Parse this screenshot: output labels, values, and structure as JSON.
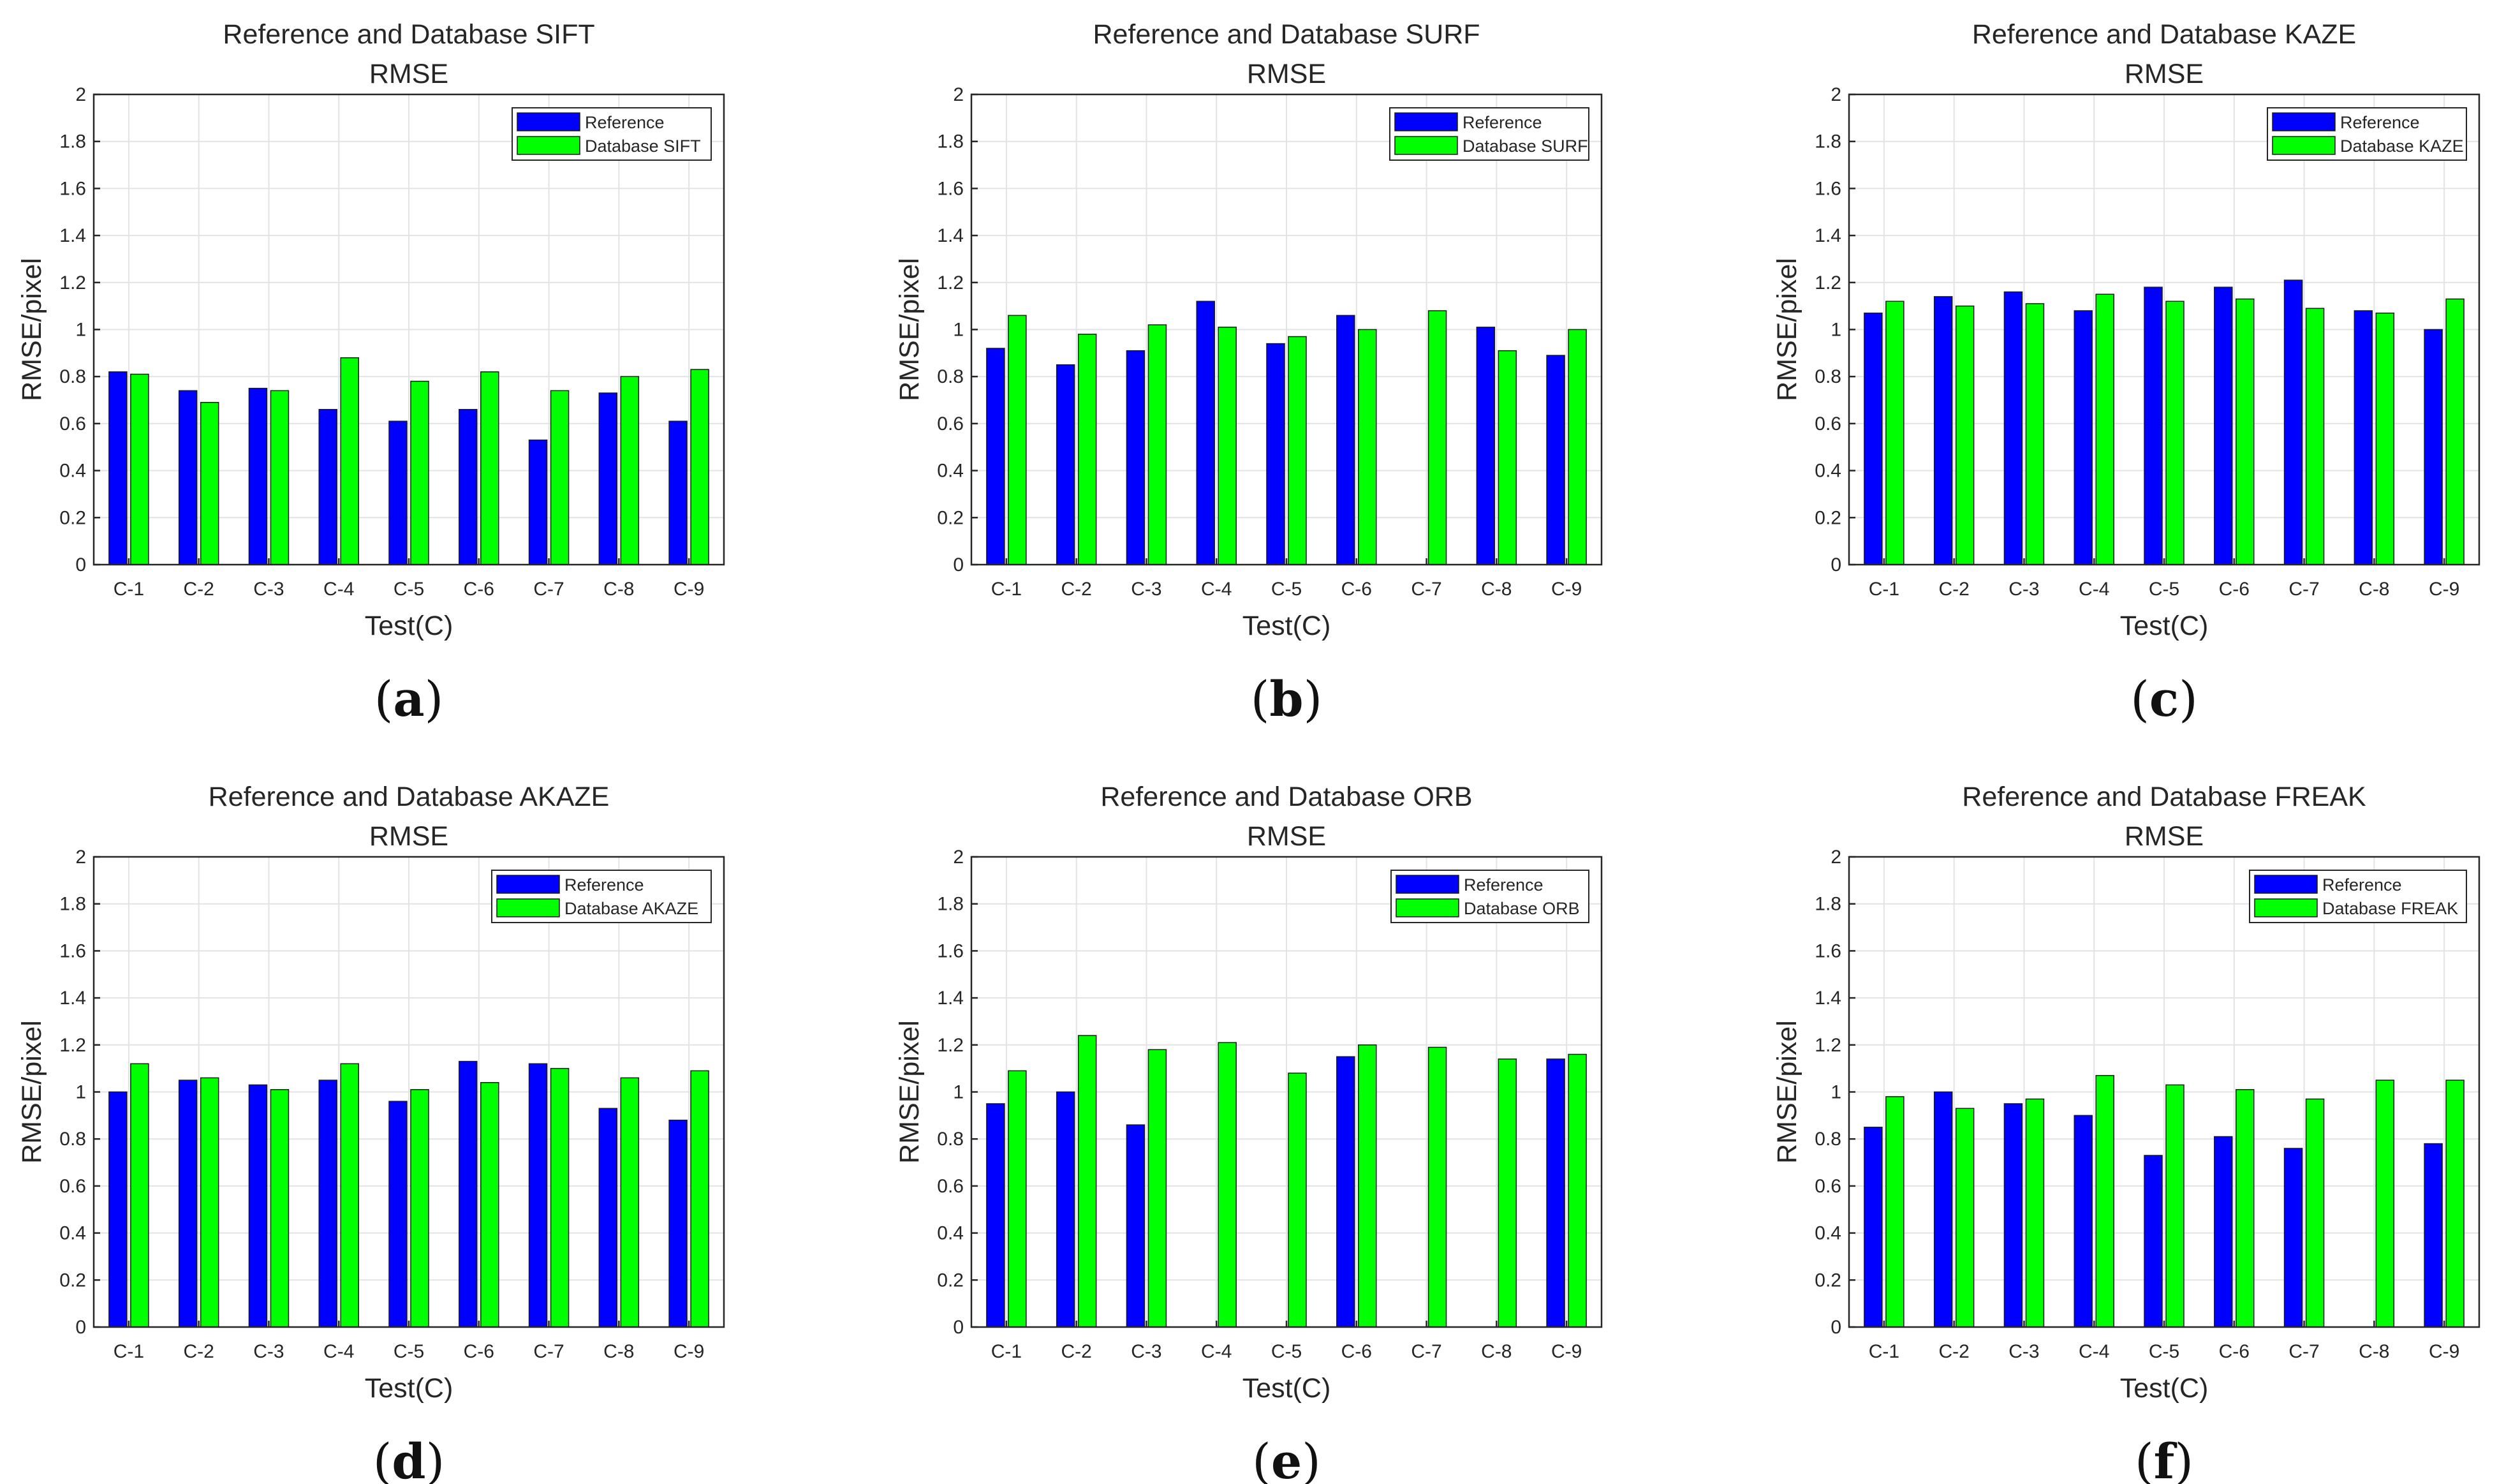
{
  "colors": {
    "reference": "#0000ff",
    "database": "#00ff00",
    "grid": "#e3e3e3",
    "axis": "#262626"
  },
  "chart_data": [
    {
      "type": "bar",
      "caption": "a",
      "title": "Reference and Database SIFT",
      "subtitle": "RMSE",
      "xlabel": "Test(C)",
      "ylabel": "RMSE/pixel",
      "ylim": [
        0,
        2
      ],
      "yticks": [
        "0",
        "0.2",
        "0.4",
        "0.6",
        "0.8",
        "1",
        "1.2",
        "1.4",
        "1.6",
        "1.8",
        "2"
      ],
      "grid": true,
      "legend_position": "top-right",
      "categories": [
        "C-1",
        "C-2",
        "C-3",
        "C-4",
        "C-5",
        "C-6",
        "C-7",
        "C-8",
        "C-9"
      ],
      "series": [
        {
          "name": "Reference",
          "values": [
            0.82,
            0.74,
            0.75,
            0.66,
            0.61,
            0.66,
            0.53,
            0.73,
            0.61
          ]
        },
        {
          "name": "Database SIFT",
          "values": [
            0.81,
            0.69,
            0.74,
            0.88,
            0.78,
            0.82,
            0.74,
            0.8,
            0.83
          ]
        }
      ]
    },
    {
      "type": "bar",
      "caption": "b",
      "title": "Reference and Database SURF",
      "subtitle": "RMSE",
      "xlabel": "Test(C)",
      "ylabel": "RMSE/pixel",
      "ylim": [
        0,
        2
      ],
      "yticks": [
        "0",
        "0.2",
        "0.4",
        "0.6",
        "0.8",
        "1",
        "1.2",
        "1.4",
        "1.6",
        "1.8",
        "2"
      ],
      "grid": true,
      "legend_position": "top-right",
      "categories": [
        "C-1",
        "C-2",
        "C-3",
        "C-4",
        "C-5",
        "C-6",
        "C-7",
        "C-8",
        "C-9"
      ],
      "series": [
        {
          "name": "Reference",
          "values": [
            0.92,
            0.85,
            0.91,
            1.12,
            0.94,
            1.06,
            0,
            1.01,
            0.89
          ]
        },
        {
          "name": "Database SURF",
          "values": [
            1.06,
            0.98,
            1.02,
            1.01,
            0.97,
            1.0,
            1.08,
            0.91,
            1.0
          ]
        }
      ]
    },
    {
      "type": "bar",
      "caption": "c",
      "title": "Reference and Database KAZE",
      "subtitle": "RMSE",
      "xlabel": "Test(C)",
      "ylabel": "RMSE/pixel",
      "ylim": [
        0,
        2
      ],
      "yticks": [
        "0",
        "0.2",
        "0.4",
        "0.6",
        "0.8",
        "1",
        "1.2",
        "1.4",
        "1.6",
        "1.8",
        "2"
      ],
      "grid": true,
      "legend_position": "top-right",
      "categories": [
        "C-1",
        "C-2",
        "C-3",
        "C-4",
        "C-5",
        "C-6",
        "C-7",
        "C-8",
        "C-9"
      ],
      "series": [
        {
          "name": "Reference",
          "values": [
            1.07,
            1.14,
            1.16,
            1.08,
            1.18,
            1.18,
            1.21,
            1.08,
            1.0
          ]
        },
        {
          "name": "Database KAZE",
          "values": [
            1.12,
            1.1,
            1.11,
            1.15,
            1.12,
            1.13,
            1.09,
            1.07,
            1.13
          ]
        }
      ]
    },
    {
      "type": "bar",
      "caption": "d",
      "title": "Reference and Database AKAZE",
      "subtitle": "RMSE",
      "xlabel": "Test(C)",
      "ylabel": "RMSE/pixel",
      "ylim": [
        0,
        2
      ],
      "yticks": [
        "0",
        "0.2",
        "0.4",
        "0.6",
        "0.8",
        "1",
        "1.2",
        "1.4",
        "1.6",
        "1.8",
        "2"
      ],
      "grid": true,
      "legend_position": "top-right",
      "categories": [
        "C-1",
        "C-2",
        "C-3",
        "C-4",
        "C-5",
        "C-6",
        "C-7",
        "C-8",
        "C-9"
      ],
      "series": [
        {
          "name": "Reference",
          "values": [
            1.0,
            1.05,
            1.03,
            1.05,
            0.96,
            1.13,
            1.12,
            0.93,
            0.88
          ]
        },
        {
          "name": "Database AKAZE",
          "values": [
            1.12,
            1.06,
            1.01,
            1.12,
            1.01,
            1.04,
            1.1,
            1.06,
            1.09
          ]
        }
      ]
    },
    {
      "type": "bar",
      "caption": "e",
      "title": "Reference and Database ORB",
      "subtitle": "RMSE",
      "xlabel": "Test(C)",
      "ylabel": "RMSE/pixel",
      "ylim": [
        0,
        2
      ],
      "yticks": [
        "0",
        "0.2",
        "0.4",
        "0.6",
        "0.8",
        "1",
        "1.2",
        "1.4",
        "1.6",
        "1.8",
        "2"
      ],
      "grid": true,
      "legend_position": "top-right",
      "categories": [
        "C-1",
        "C-2",
        "C-3",
        "C-4",
        "C-5",
        "C-6",
        "C-7",
        "C-8",
        "C-9"
      ],
      "series": [
        {
          "name": "Reference",
          "values": [
            0.95,
            1.0,
            0.86,
            0,
            0,
            1.15,
            0,
            0,
            1.14
          ]
        },
        {
          "name": "Database ORB",
          "values": [
            1.09,
            1.24,
            1.18,
            1.21,
            1.08,
            1.2,
            1.19,
            1.14,
            1.16
          ]
        }
      ]
    },
    {
      "type": "bar",
      "caption": "f",
      "title": "Reference and Database FREAK",
      "subtitle": "RMSE",
      "xlabel": "Test(C)",
      "ylabel": "RMSE/pixel",
      "ylim": [
        0,
        2
      ],
      "yticks": [
        "0",
        "0.2",
        "0.4",
        "0.6",
        "0.8",
        "1",
        "1.2",
        "1.4",
        "1.6",
        "1.8",
        "2"
      ],
      "grid": true,
      "legend_position": "top-right",
      "categories": [
        "C-1",
        "C-2",
        "C-3",
        "C-4",
        "C-5",
        "C-6",
        "C-7",
        "C-8",
        "C-9"
      ],
      "series": [
        {
          "name": "Reference",
          "values": [
            0.85,
            1.0,
            0.95,
            0.9,
            0.73,
            0.81,
            0.76,
            0,
            0.78
          ]
        },
        {
          "name": "Database FREAK",
          "values": [
            0.98,
            0.93,
            0.97,
            1.07,
            1.03,
            1.01,
            0.97,
            1.05,
            1.05
          ]
        }
      ]
    }
  ]
}
